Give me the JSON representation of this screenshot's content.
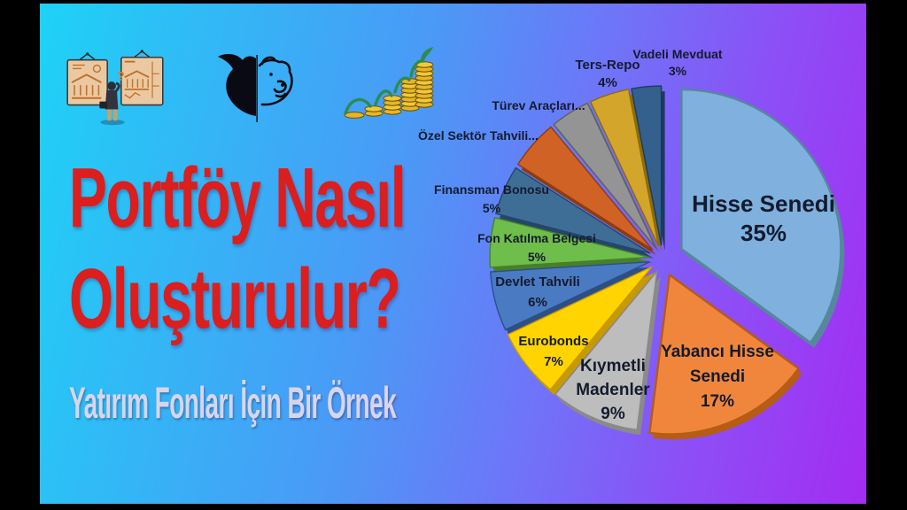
{
  "page": {
    "title_line1": "Portföy Nasıl",
    "title_line2": "Oluşturulur?",
    "subtitle": "Yatırım Fonları İçin Bir Örnek",
    "title_color": "#db1e1e",
    "subtitle_color": "#d9d5e8",
    "background_gradient": [
      "#1ed2f6",
      "#4a9af6",
      "#a42cf2"
    ],
    "letterbox_color": "#000000"
  },
  "icons": {
    "left": "investor-choosing-between-two-bank-boards-icon",
    "middle": "bull-vs-bear-market-icon",
    "right": "growing-coin-stacks-with-sprout-icon"
  },
  "chart_data": {
    "type": "pie",
    "start_angle_deg": -90,
    "direction": "clockwise",
    "label_color": "#141b2e",
    "slices": [
      {
        "id": "hisse-senedi",
        "label": "Hisse Senedi",
        "value": 35,
        "lines": [
          "Hisse Senedi",
          "35%"
        ],
        "color": "#7fb0de",
        "edge": "#56889c",
        "explode": 24,
        "label_pos": [
          422,
          229
        ],
        "label_size": 26,
        "line_height": 33
      },
      {
        "id": "yabanci-hisse-senedi",
        "label": "Yabancı Hisse Senedi",
        "value": 17,
        "lines": [
          "Yabancı  Hisse",
          "Senedi",
          "17%"
        ],
        "color": "#f0863c",
        "edge": "#b65c14",
        "explode": 20,
        "label_pos": [
          370,
          393
        ],
        "label_size": 19,
        "line_height": 28
      },
      {
        "id": "kiymetli-madenler",
        "label": "Kıymetli Madenler",
        "value": 9,
        "lines": [
          "Kıymetli",
          "Madenler",
          "9%"
        ],
        "color": "#bdbdbd",
        "edge": "#8a8a8a",
        "explode": 16,
        "label_pos": [
          252,
          409
        ],
        "label_size": 19,
        "line_height": 27
      },
      {
        "id": "eurobonds",
        "label": "Eurobonds",
        "value": 7,
        "lines": [
          "Eurobonds",
          "7%"
        ],
        "color": "#ffd400",
        "edge": "#c79a00",
        "explode": 15,
        "label_pos": [
          185,
          380
        ],
        "label_size": 15,
        "line_height": 23
      },
      {
        "id": "devlet-tahvili",
        "label": "Devlet Tahvili",
        "value": 6,
        "lines": [
          "Devlet Tahvili",
          "6%"
        ],
        "color": "#4a7ac2",
        "edge": "#2d4f85",
        "explode": 15,
        "label_pos": [
          167,
          313
        ],
        "label_size": 15,
        "line_height": 23
      },
      {
        "id": "fon-katilma-belgesi",
        "label": "Fon Katılma Belgesi",
        "value": 5,
        "lines": [
          "Fon Katılma Belgesi",
          "5%"
        ],
        "color": "#6fbd4a",
        "edge": "#47802a",
        "explode": 15,
        "label_pos": [
          166,
          264
        ],
        "label_size": 14,
        "line_height": 21
      },
      {
        "id": "finansman-bonosu",
        "label": "Finansman Bonosu",
        "value": 5,
        "lines": [
          "Finansman Bonosu",
          "5%"
        ],
        "color": "#3e6e96",
        "edge": "#24466a",
        "explode": 15,
        "label_pos": [
          115,
          209
        ],
        "label_size": 14,
        "line_height": 21
      },
      {
        "id": "ozel-sektor-tahvili",
        "label": "Özel Sektör Tahvili",
        "value": 5,
        "lines": [
          "Özel Sektör Tahvili..."
        ],
        "color": "#d06226",
        "edge": "#8e3c0e",
        "explode": 15,
        "label_pos": [
          100,
          148
        ],
        "label_size": 14,
        "line_height": 21
      },
      {
        "id": "turev-araclari",
        "label": "Türev Araçları",
        "value": 4,
        "lines": [
          "Türev Araçları..."
        ],
        "color": "#949494",
        "edge": "#606060",
        "explode": 15,
        "label_pos": [
          168,
          114
        ],
        "label_size": 14,
        "line_height": 21
      },
      {
        "id": "ters-repo",
        "label": "Ters-Repo",
        "value": 4,
        "lines": [
          "Ters-Repo",
          "4%"
        ],
        "color": "#d3a62b",
        "edge": "#8f6c08",
        "explode": 15,
        "label_pos": [
          246,
          68
        ],
        "label_size": 15,
        "line_height": 20
      },
      {
        "id": "vadeli-mevduat",
        "label": "Vadeli Mevduat",
        "value": 3,
        "lines": [
          "Vadeli Mevduat",
          "3%"
        ],
        "color": "#33608d",
        "edge": "#1d3a5c",
        "explode": 15,
        "label_pos": [
          325,
          56
        ],
        "label_size": 14,
        "line_height": 19
      }
    ]
  }
}
